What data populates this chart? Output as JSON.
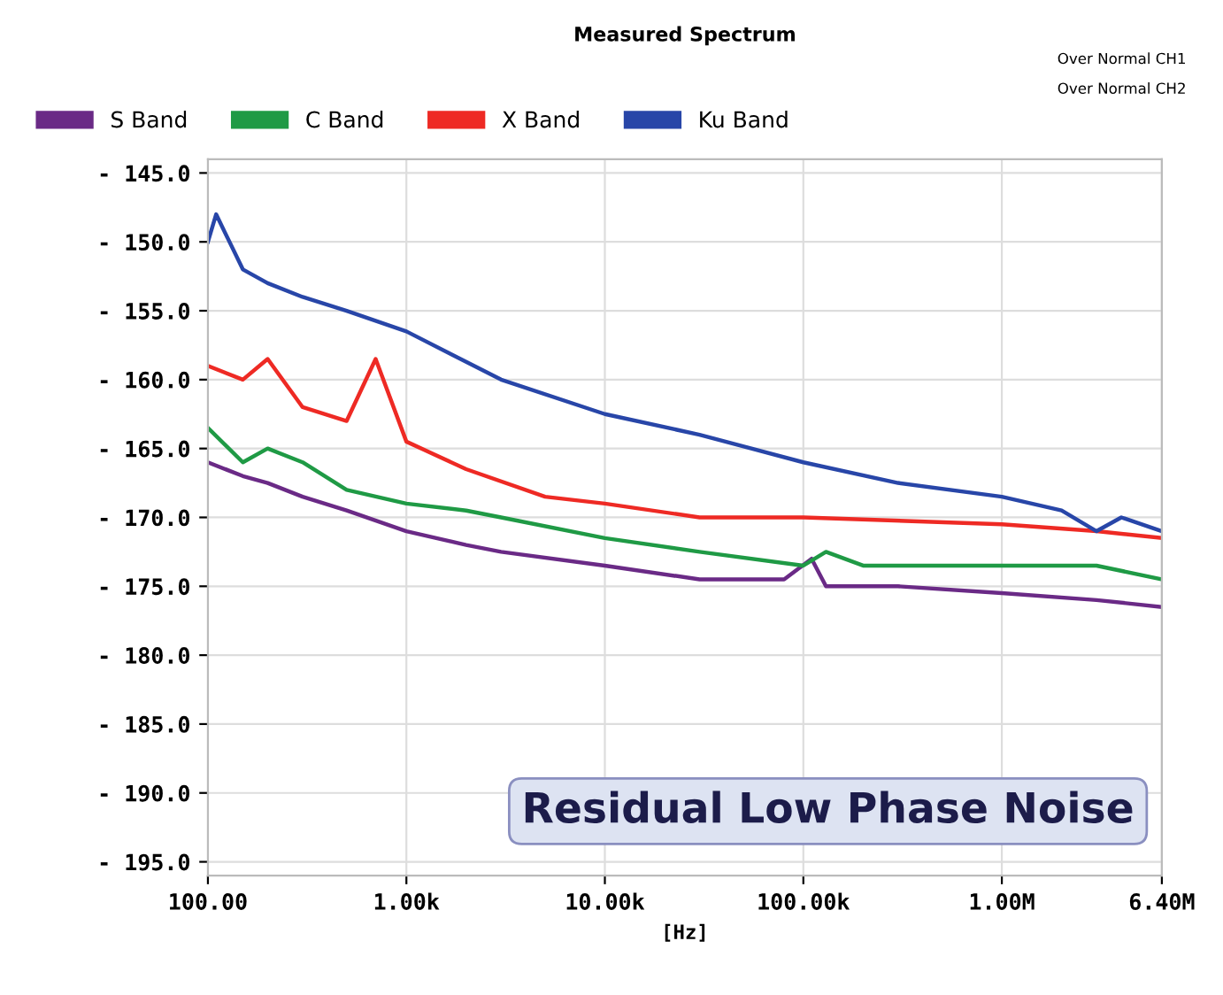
{
  "chart_data": {
    "type": "line",
    "title": "Measured Spectrum",
    "xlabel": "[Hz]",
    "log": "x",
    "xlim": [
      100,
      6400000
    ],
    "xticks": [
      {
        "value": 100,
        "label": "100.00"
      },
      {
        "value": 1000,
        "label": "1.00k"
      },
      {
        "value": 10000,
        "label": "10.00k"
      },
      {
        "value": 100000,
        "label": "100.00k"
      },
      {
        "value": 1000000,
        "label": "1.00M"
      },
      {
        "value": 6400000,
        "label": "6.40M"
      }
    ],
    "ylim": [
      -196,
      -144
    ],
    "yticks": [
      {
        "value": -145,
        "label": "- 145.0"
      },
      {
        "value": -150,
        "label": "- 150.0"
      },
      {
        "value": -155,
        "label": "- 155.0"
      },
      {
        "value": -160,
        "label": "- 160.0"
      },
      {
        "value": -165,
        "label": "- 165.0"
      },
      {
        "value": -170,
        "label": "- 170.0"
      },
      {
        "value": -175,
        "label": "- 175.0"
      },
      {
        "value": -180,
        "label": "- 180.0"
      },
      {
        "value": -185,
        "label": "- 185.0"
      },
      {
        "value": -190,
        "label": "- 190.0"
      },
      {
        "value": -195,
        "label": "- 195.0"
      }
    ],
    "grid": true,
    "legend": "top",
    "line_style": "solid",
    "marker": "none",
    "annotations": [
      "Residual Low Phase Noise",
      "Over Normal CH1",
      "Over Normal CH2"
    ],
    "series": [
      {
        "name": "S Band",
        "color": "#6a2a86",
        "x": [
          100,
          150,
          200,
          300,
          500,
          1000,
          2000,
          3000,
          10000,
          30000,
          80000,
          110000,
          130000,
          300000,
          1000000,
          3000000,
          6400000
        ],
        "values": [
          -166,
          -167,
          -167.5,
          -168.5,
          -169.5,
          -171,
          -172,
          -172.5,
          -173.5,
          -174.5,
          -174.5,
          -173,
          -175,
          -175,
          -175.5,
          -176,
          -176.5
        ]
      },
      {
        "name": "C Band",
        "color": "#1f9a45",
        "x": [
          100,
          150,
          200,
          300,
          500,
          1000,
          2000,
          3000,
          10000,
          30000,
          100000,
          130000,
          200000,
          1000000,
          3000000,
          6400000
        ],
        "values": [
          -163.5,
          -166,
          -165,
          -166,
          -168,
          -169,
          -169.5,
          -170,
          -171.5,
          -172.5,
          -173.5,
          -172.5,
          -173.5,
          -173.5,
          -173.5,
          -174.5
        ]
      },
      {
        "name": "X Band",
        "color": "#ee2a24",
        "x": [
          100,
          150,
          200,
          300,
          500,
          700,
          1000,
          2000,
          5000,
          10000,
          30000,
          100000,
          1000000,
          3000000,
          6400000
        ],
        "values": [
          -159,
          -160,
          -158.5,
          -162,
          -163,
          -158.5,
          -164.5,
          -166.5,
          -168.5,
          -169,
          -170,
          -170,
          -170.5,
          -171,
          -171.5
        ]
      },
      {
        "name": "Ku Band",
        "color": "#2846a8",
        "x": [
          100,
          110,
          150,
          200,
          300,
          500,
          1000,
          3000,
          10000,
          30000,
          100000,
          300000,
          1000000,
          2000000,
          3000000,
          4000000,
          6400000
        ],
        "values": [
          -150,
          -148,
          -152,
          -153,
          -154,
          -155,
          -156.5,
          -160,
          -162.5,
          -164,
          -166,
          -167.5,
          -168.5,
          -169.5,
          -171,
          -170,
          -171
        ]
      }
    ]
  }
}
